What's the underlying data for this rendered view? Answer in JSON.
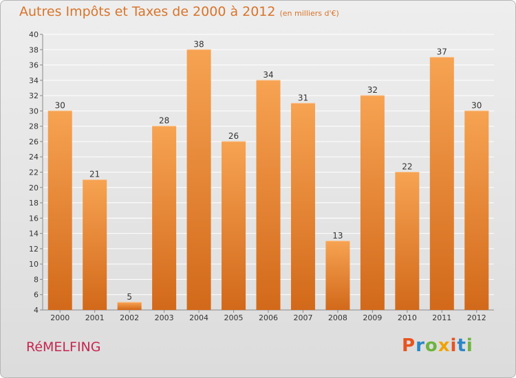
{
  "header": {
    "title": "Autres Impôts et Taxes de 2000 à 2012",
    "subtitle": "(en milliers d'€)"
  },
  "footer": {
    "commune": "RéMELFING",
    "logo_text": "Proxiti"
  },
  "colors": {
    "title": "#d8742a",
    "commune": "#c6264f",
    "bar_top": "#f6a352",
    "bar_bottom": "#d2691a",
    "logo_letters": [
      "#e8531f",
      "#2b86c7",
      "#6eb33f",
      "#f0a400",
      "#e8531f",
      "#2b86c7",
      "#6eb33f"
    ]
  },
  "chart_data": {
    "type": "bar",
    "categories": [
      "2000",
      "2001",
      "2002",
      "2003",
      "2004",
      "2005",
      "2006",
      "2007",
      "2008",
      "2009",
      "2010",
      "2011",
      "2012"
    ],
    "values": [
      30,
      21,
      5,
      28,
      38,
      26,
      34,
      31,
      13,
      32,
      22,
      37,
      30
    ],
    "value_labels": [
      "30",
      "21",
      "5",
      "28",
      "38",
      "26",
      "34",
      "31",
      "13",
      "32",
      "22",
      "37",
      "30"
    ],
    "y_ticks": [
      "4",
      "6",
      "8",
      "10",
      "12",
      "14",
      "16",
      "18",
      "20",
      "22",
      "24",
      "26",
      "28",
      "30",
      "32",
      "34",
      "36",
      "38",
      "40"
    ],
    "ylim": [
      4,
      40
    ],
    "grid": true,
    "legend": "none"
  }
}
